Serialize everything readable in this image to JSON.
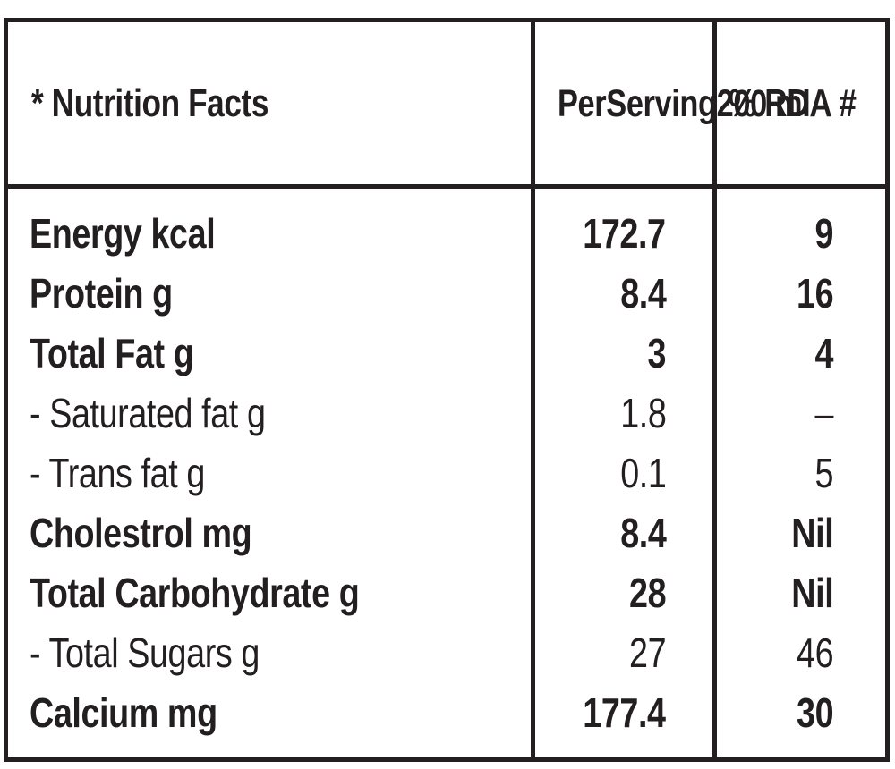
{
  "header": {
    "nutrition_facts": "* Nutrition Facts",
    "per_serving_line1": "Per",
    "per_serving_line2": "Serving",
    "per_serving_line3": "200 ml",
    "rda": "% RDA #"
  },
  "rows": [
    {
      "name": "Energy kcal",
      "per_serving": "172.7",
      "rda": "9",
      "bold": true
    },
    {
      "name": "Protein g",
      "per_serving": "8.4",
      "rda": "16",
      "bold": true
    },
    {
      "name": "Total Fat g",
      "per_serving": "3",
      "rda": "4",
      "bold": true
    },
    {
      "name": "- Saturated fat g",
      "per_serving": "1.8",
      "rda": "–",
      "bold": false
    },
    {
      "name": "- Trans fat g",
      "per_serving": "0.1",
      "rda": "5",
      "bold": false
    },
    {
      "name": "Cholestrol mg",
      "per_serving": "8.4",
      "rda": "Nil",
      "bold": true
    },
    {
      "name": "Total Carbohydrate g",
      "per_serving": "28",
      "rda": "Nil",
      "bold": true
    },
    {
      "name": "- Total Sugars g",
      "per_serving": "27",
      "rda": "46",
      "bold": false
    },
    {
      "name": "Calcium mg",
      "per_serving": "177.4",
      "rda": "30",
      "bold": true
    }
  ]
}
